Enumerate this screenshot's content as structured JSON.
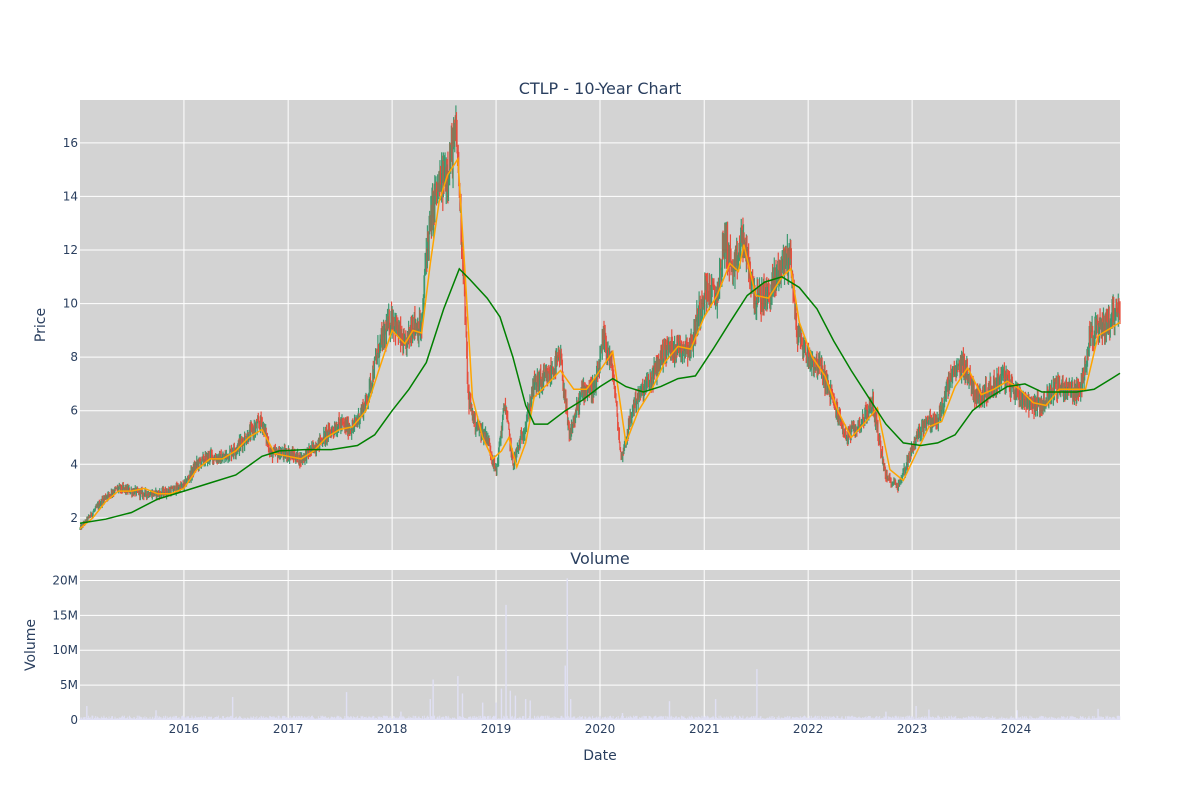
{
  "chart_data": [
    {
      "type": "candlestick",
      "title": "CTLP - 10-Year Chart",
      "ylabel": "Price",
      "xlabel": "",
      "ylim": [
        0.8,
        17.6
      ],
      "yticks": [
        2,
        4,
        6,
        8,
        10,
        12,
        14,
        16
      ],
      "grid": true,
      "colors": {
        "background": "#d3d3d3",
        "up": "#3d9970",
        "down": "#e74c3c",
        "ma_short": "#ffa500",
        "ma_long": "#008000"
      },
      "close": [
        [
          "2015-01-01",
          1.6
        ],
        [
          "2015-02-15",
          2.2
        ],
        [
          "2015-04-01",
          2.8
        ],
        [
          "2015-05-15",
          3.1
        ],
        [
          "2015-07-01",
          3.0
        ],
        [
          "2015-08-15",
          2.9
        ],
        [
          "2015-10-01",
          2.9
        ],
        [
          "2015-11-15",
          3.0
        ],
        [
          "2016-01-01",
          3.2
        ],
        [
          "2016-02-15",
          4.0
        ],
        [
          "2016-04-01",
          4.3
        ],
        [
          "2016-05-15",
          4.2
        ],
        [
          "2016-07-01",
          4.6
        ],
        [
          "2016-08-15",
          5.1
        ],
        [
          "2016-10-01",
          5.6
        ],
        [
          "2016-11-01",
          4.4
        ],
        [
          "2017-01-01",
          4.4
        ],
        [
          "2017-02-15",
          4.2
        ],
        [
          "2017-04-01",
          4.6
        ],
        [
          "2017-05-15",
          5.1
        ],
        [
          "2017-07-01",
          5.5
        ],
        [
          "2017-08-15",
          5.3
        ],
        [
          "2017-10-01",
          6.3
        ],
        [
          "2017-11-15",
          8.3
        ],
        [
          "2018-01-01",
          9.5
        ],
        [
          "2018-02-15",
          8.3
        ],
        [
          "2018-03-15",
          9.3
        ],
        [
          "2018-04-15",
          9.0
        ],
        [
          "2018-05-01",
          12.0
        ],
        [
          "2018-06-01",
          14.0
        ],
        [
          "2018-07-15",
          15.0
        ],
        [
          "2018-08-15",
          16.3
        ],
        [
          "2018-09-10",
          11.0
        ],
        [
          "2018-09-25",
          6.5
        ],
        [
          "2018-10-20",
          5.5
        ],
        [
          "2018-12-01",
          5.0
        ],
        [
          "2019-01-01",
          3.7
        ],
        [
          "2019-02-01",
          6.3
        ],
        [
          "2019-03-01",
          4.0
        ],
        [
          "2019-04-15",
          5.5
        ],
        [
          "2019-05-15",
          7.0
        ],
        [
          "2019-07-01",
          7.2
        ],
        [
          "2019-08-15",
          8.0
        ],
        [
          "2019-09-15",
          5.0
        ],
        [
          "2019-11-01",
          6.8
        ],
        [
          "2019-12-15",
          6.8
        ],
        [
          "2020-01-15",
          8.7
        ],
        [
          "2020-02-15",
          7.5
        ],
        [
          "2020-03-15",
          4.2
        ],
        [
          "2020-05-01",
          6.3
        ],
        [
          "2020-07-01",
          7.2
        ],
        [
          "2020-08-15",
          8.3
        ],
        [
          "2020-10-01",
          8.4
        ],
        [
          "2020-11-15",
          8.4
        ],
        [
          "2021-01-01",
          10.5
        ],
        [
          "2021-02-15",
          10.3
        ],
        [
          "2021-03-15",
          12.5
        ],
        [
          "2021-04-15",
          11.0
        ],
        [
          "2021-05-15",
          12.5
        ],
        [
          "2021-07-01",
          10.1
        ],
        [
          "2021-08-15",
          10.3
        ],
        [
          "2021-10-01",
          11.5
        ],
        [
          "2021-11-01",
          11.8
        ],
        [
          "2021-11-20",
          9.0
        ],
        [
          "2022-01-01",
          8.0
        ],
        [
          "2022-02-15",
          7.6
        ],
        [
          "2022-04-01",
          6.3
        ],
        [
          "2022-05-15",
          5.0
        ],
        [
          "2022-07-01",
          5.5
        ],
        [
          "2022-08-15",
          6.3
        ],
        [
          "2022-10-01",
          3.5
        ],
        [
          "2022-11-15",
          3.2
        ],
        [
          "2023-01-01",
          4.6
        ],
        [
          "2023-02-15",
          5.6
        ],
        [
          "2023-04-01",
          5.6
        ],
        [
          "2023-05-15",
          7.2
        ],
        [
          "2023-07-01",
          7.8
        ],
        [
          "2023-08-15",
          6.5
        ],
        [
          "2023-10-01",
          6.8
        ],
        [
          "2023-11-15",
          7.3
        ],
        [
          "2024-01-01",
          6.7
        ],
        [
          "2024-02-15",
          6.3
        ],
        [
          "2024-04-01",
          6.2
        ],
        [
          "2024-05-15",
          6.9
        ],
        [
          "2024-07-01",
          6.8
        ],
        [
          "2024-08-15",
          6.7
        ],
        [
          "2024-09-15",
          8.8
        ],
        [
          "2024-11-01",
          9.1
        ],
        [
          "2024-12-15",
          9.7
        ],
        [
          "2024-12-31",
          9.8
        ]
      ],
      "series": [
        {
          "role": "ma_short",
          "points": [
            [
              "2015-01-01",
              1.6
            ],
            [
              "2015-02-15",
              2.0
            ],
            [
              "2015-04-01",
              2.6
            ],
            [
              "2015-05-15",
              3.0
            ],
            [
              "2015-07-01",
              3.0
            ],
            [
              "2015-08-15",
              3.1
            ],
            [
              "2015-10-01",
              2.9
            ],
            [
              "2015-11-15",
              2.9
            ],
            [
              "2016-01-01",
              3.1
            ],
            [
              "2016-02-15",
              3.8
            ],
            [
              "2016-04-01",
              4.2
            ],
            [
              "2016-05-15",
              4.2
            ],
            [
              "2016-07-01",
              4.5
            ],
            [
              "2016-08-15",
              5.0
            ],
            [
              "2016-10-01",
              5.3
            ],
            [
              "2016-11-15",
              4.4
            ],
            [
              "2017-01-01",
              4.3
            ],
            [
              "2017-02-15",
              4.2
            ],
            [
              "2017-04-01",
              4.5
            ],
            [
              "2017-05-15",
              5.0
            ],
            [
              "2017-07-01",
              5.3
            ],
            [
              "2017-08-15",
              5.4
            ],
            [
              "2017-10-01",
              6.0
            ],
            [
              "2017-11-15",
              7.5
            ],
            [
              "2018-01-01",
              9.0
            ],
            [
              "2018-02-15",
              8.5
            ],
            [
              "2018-03-15",
              9.0
            ],
            [
              "2018-04-15",
              8.9
            ],
            [
              "2018-05-15",
              11.5
            ],
            [
              "2018-06-15",
              13.8
            ],
            [
              "2018-07-15",
              14.8
            ],
            [
              "2018-08-20",
              15.4
            ],
            [
              "2018-09-15",
              11.0
            ],
            [
              "2018-10-10",
              6.5
            ],
            [
              "2018-11-15",
              5.0
            ],
            [
              "2018-12-20",
              4.2
            ],
            [
              "2019-01-20",
              4.5
            ],
            [
              "2019-02-15",
              5.0
            ],
            [
              "2019-03-15",
              3.9
            ],
            [
              "2019-04-15",
              4.8
            ],
            [
              "2019-05-15",
              6.5
            ],
            [
              "2019-07-01",
              7.0
            ],
            [
              "2019-08-15",
              7.5
            ],
            [
              "2019-10-01",
              6.8
            ],
            [
              "2019-11-15",
              6.8
            ],
            [
              "2020-01-01",
              7.5
            ],
            [
              "2020-02-15",
              8.2
            ],
            [
              "2020-04-01",
              4.8
            ],
            [
              "2020-05-15",
              6.0
            ],
            [
              "2020-07-01",
              6.8
            ],
            [
              "2020-08-15",
              7.8
            ],
            [
              "2020-10-01",
              8.4
            ],
            [
              "2020-11-15",
              8.3
            ],
            [
              "2021-01-01",
              9.5
            ],
            [
              "2021-02-15",
              10.3
            ],
            [
              "2021-04-01",
              11.5
            ],
            [
              "2021-05-01",
              11.2
            ],
            [
              "2021-05-20",
              12.2
            ],
            [
              "2021-07-01",
              10.3
            ],
            [
              "2021-08-15",
              10.2
            ],
            [
              "2021-10-01",
              11.0
            ],
            [
              "2021-11-01",
              11.3
            ],
            [
              "2021-12-01",
              9.3
            ],
            [
              "2022-01-15",
              8.0
            ],
            [
              "2022-03-01",
              7.3
            ],
            [
              "2022-04-15",
              6.0
            ],
            [
              "2022-06-01",
              5.0
            ],
            [
              "2022-07-15",
              5.5
            ],
            [
              "2022-09-01",
              6.1
            ],
            [
              "2022-10-15",
              3.8
            ],
            [
              "2022-12-01",
              3.4
            ],
            [
              "2023-01-15",
              4.4
            ],
            [
              "2023-03-01",
              5.4
            ],
            [
              "2023-04-15",
              5.6
            ],
            [
              "2023-06-01",
              6.9
            ],
            [
              "2023-07-15",
              7.6
            ],
            [
              "2023-09-01",
              6.6
            ],
            [
              "2023-10-15",
              6.8
            ],
            [
              "2023-12-01",
              7.1
            ],
            [
              "2024-01-15",
              6.8
            ],
            [
              "2024-03-01",
              6.3
            ],
            [
              "2024-04-15",
              6.2
            ],
            [
              "2024-06-01",
              6.8
            ],
            [
              "2024-07-15",
              6.8
            ],
            [
              "2024-09-01",
              6.8
            ],
            [
              "2024-10-15",
              8.8
            ],
            [
              "2024-12-01",
              9.1
            ],
            [
              "2024-12-31",
              9.3
            ]
          ]
        },
        {
          "role": "ma_long",
          "points": [
            [
              "2015-01-01",
              1.8
            ],
            [
              "2015-04-01",
              1.95
            ],
            [
              "2015-07-01",
              2.2
            ],
            [
              "2015-10-01",
              2.7
            ],
            [
              "2016-01-01",
              3.0
            ],
            [
              "2016-04-01",
              3.3
            ],
            [
              "2016-07-01",
              3.6
            ],
            [
              "2016-10-01",
              4.3
            ],
            [
              "2016-12-01",
              4.5
            ],
            [
              "2017-03-01",
              4.55
            ],
            [
              "2017-06-01",
              4.55
            ],
            [
              "2017-09-01",
              4.7
            ],
            [
              "2017-11-01",
              5.1
            ],
            [
              "2018-01-01",
              6.0
            ],
            [
              "2018-03-01",
              6.8
            ],
            [
              "2018-05-01",
              7.8
            ],
            [
              "2018-07-01",
              9.8
            ],
            [
              "2018-08-25",
              11.3
            ],
            [
              "2018-10-01",
              10.9
            ],
            [
              "2018-12-01",
              10.2
            ],
            [
              "2019-01-15",
              9.5
            ],
            [
              "2019-03-01",
              8.0
            ],
            [
              "2019-04-15",
              6.2
            ],
            [
              "2019-05-15",
              5.5
            ],
            [
              "2019-07-01",
              5.5
            ],
            [
              "2019-09-01",
              6.0
            ],
            [
              "2019-11-01",
              6.4
            ],
            [
              "2020-01-01",
              6.9
            ],
            [
              "2020-02-15",
              7.2
            ],
            [
              "2020-04-01",
              6.9
            ],
            [
              "2020-06-01",
              6.7
            ],
            [
              "2020-08-01",
              6.9
            ],
            [
              "2020-10-01",
              7.2
            ],
            [
              "2020-12-01",
              7.3
            ],
            [
              "2021-02-01",
              8.3
            ],
            [
              "2021-04-01",
              9.3
            ],
            [
              "2021-06-01",
              10.3
            ],
            [
              "2021-08-01",
              10.8
            ],
            [
              "2021-10-01",
              11.0
            ],
            [
              "2021-12-01",
              10.6
            ],
            [
              "2022-02-01",
              9.8
            ],
            [
              "2022-04-01",
              8.6
            ],
            [
              "2022-06-01",
              7.5
            ],
            [
              "2022-08-01",
              6.5
            ],
            [
              "2022-10-01",
              5.5
            ],
            [
              "2022-12-01",
              4.8
            ],
            [
              "2023-02-01",
              4.7
            ],
            [
              "2023-04-01",
              4.8
            ],
            [
              "2023-06-01",
              5.1
            ],
            [
              "2023-08-01",
              6.0
            ],
            [
              "2023-10-01",
              6.5
            ],
            [
              "2023-12-01",
              6.9
            ],
            [
              "2024-02-01",
              7.0
            ],
            [
              "2024-04-01",
              6.7
            ],
            [
              "2024-06-01",
              6.7
            ],
            [
              "2024-08-01",
              6.7
            ],
            [
              "2024-10-01",
              6.8
            ],
            [
              "2024-12-01",
              7.2
            ],
            [
              "2024-12-31",
              7.4
            ]
          ]
        }
      ]
    },
    {
      "type": "bar",
      "title": "Volume",
      "ylabel": "Volume",
      "xlabel": "Date",
      "ylim": [
        0,
        21500000
      ],
      "yticks": [
        0,
        5000000,
        10000000,
        15000000,
        20000000
      ],
      "ytick_labels": [
        "0",
        "5M",
        "10M",
        "15M",
        "20M"
      ],
      "xlim": [
        "2015-01-01",
        "2024-12-31"
      ],
      "xticks": [
        "2016-01-01",
        "2017-01-01",
        "2018-01-01",
        "2019-01-01",
        "2020-01-01",
        "2021-01-01",
        "2022-01-01",
        "2023-01-01",
        "2024-01-01"
      ],
      "xtick_labels": [
        "2016",
        "2017",
        "2018",
        "2019",
        "2020",
        "2021",
        "2022",
        "2023",
        "2024"
      ],
      "bar_color": "#e0e0f4",
      "spikes": [
        [
          "2015-01-25",
          2000000
        ],
        [
          "2015-09-25",
          1400000
        ],
        [
          "2016-06-20",
          3300000
        ],
        [
          "2017-07-25",
          4000000
        ],
        [
          "2018-02-01",
          1200000
        ],
        [
          "2018-05-15",
          3000000
        ],
        [
          "2018-05-25",
          5800000
        ],
        [
          "2018-08-20",
          6300000
        ],
        [
          "2018-09-05",
          3800000
        ],
        [
          "2018-11-15",
          2500000
        ],
        [
          "2019-01-01",
          2500000
        ],
        [
          "2019-01-20",
          4500000
        ],
        [
          "2019-02-05",
          16500000
        ],
        [
          "2019-02-20",
          4200000
        ],
        [
          "2019-03-10",
          3500000
        ],
        [
          "2019-04-15",
          3000000
        ],
        [
          "2019-05-01",
          2800000
        ],
        [
          "2019-09-01",
          7800000
        ],
        [
          "2019-09-08",
          20300000
        ],
        [
          "2019-09-20",
          3000000
        ],
        [
          "2020-03-20",
          1000000
        ],
        [
          "2020-09-01",
          2700000
        ],
        [
          "2021-02-10",
          3000000
        ],
        [
          "2021-07-05",
          7300000
        ],
        [
          "2022-10-01",
          1200000
        ],
        [
          "2023-01-15",
          2000000
        ],
        [
          "2023-03-01",
          1500000
        ],
        [
          "2024-01-05",
          1400000
        ],
        [
          "2024-10-15",
          1600000
        ]
      ],
      "baseline_volume": 350000
    }
  ]
}
